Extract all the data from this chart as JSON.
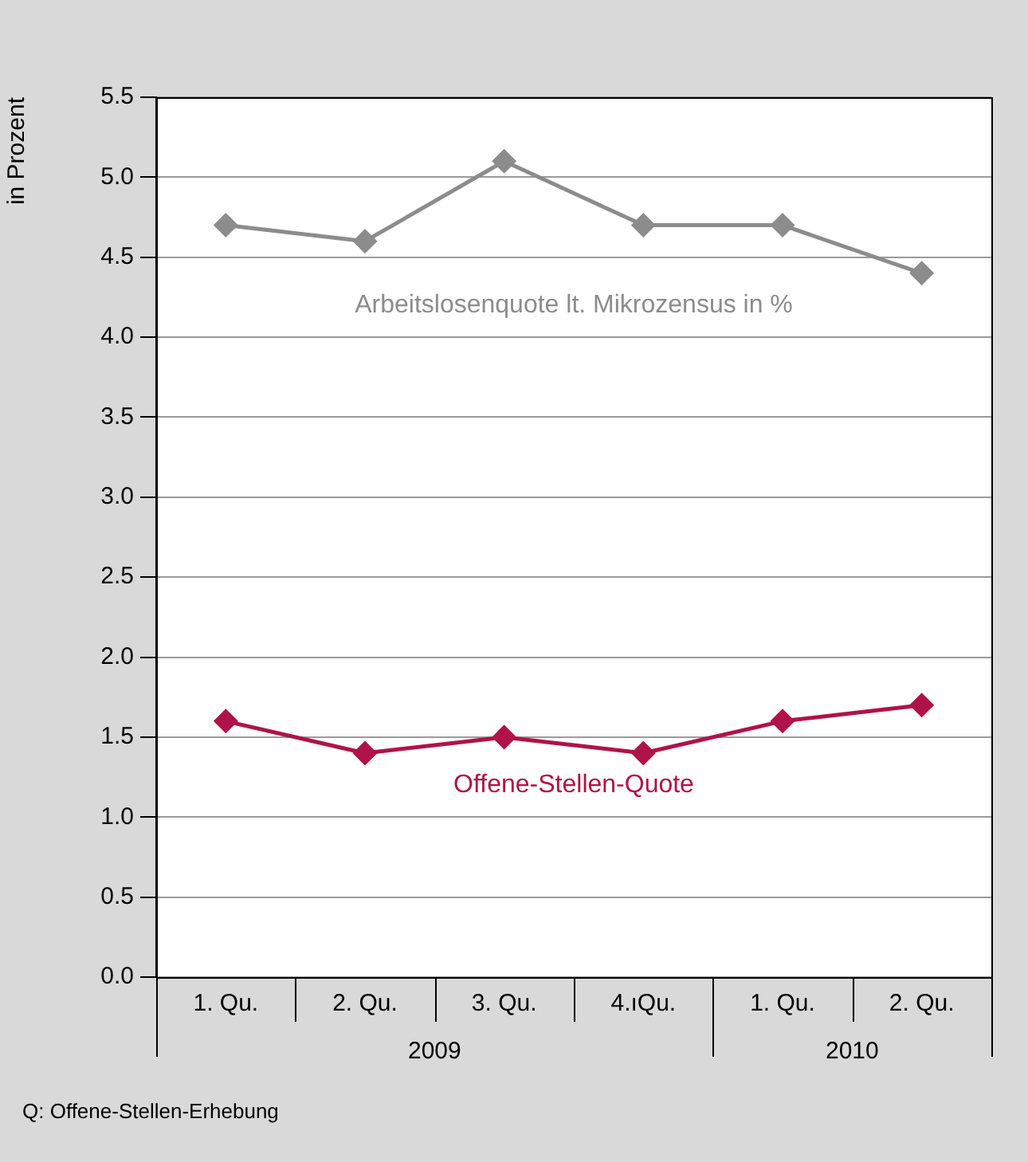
{
  "chart_data": {
    "type": "line",
    "ylabel": "in Prozent",
    "categories": [
      "1. Qu.",
      "2. Qu.",
      "3. Qu.",
      "4.ıQu.",
      "1. Qu.",
      "2. Qu."
    ],
    "series": [
      {
        "name": "Arbeitslosenquote lt. Mikrozensus in %",
        "color": "#8c8c8c",
        "values": [
          4.7,
          4.6,
          5.1,
          4.7,
          4.7,
          4.4
        ]
      },
      {
        "name": "Offene-Stellen-Quote",
        "color": "#b0124a",
        "values": [
          1.6,
          1.4,
          1.5,
          1.4,
          1.6,
          1.7
        ]
      }
    ],
    "ylim": [
      0,
      5.5
    ],
    "yticks": [
      {
        "value": 0,
        "label": "0.0"
      },
      {
        "value": 0.5,
        "label": "0.5"
      },
      {
        "value": 1,
        "label": "1.0"
      },
      {
        "value": 1.5,
        "label": "1.5"
      },
      {
        "value": 2,
        "label": "2.0"
      },
      {
        "value": 2.5,
        "label": "2.5"
      },
      {
        "value": 3,
        "label": "3.0"
      },
      {
        "value": 3.5,
        "label": "3.5"
      },
      {
        "value": 4,
        "label": "4.0"
      },
      {
        "value": 4.5,
        "label": "4.5"
      },
      {
        "value": 5,
        "label": "5.0"
      },
      {
        "value": 5.5,
        "label": "5.5"
      }
    ],
    "grid": "y",
    "legend": false,
    "marker": "diamond",
    "line_style": "solid",
    "annotations": [
      "2009",
      "2010",
      "Q: Offene-Stellen-Erhebung"
    ]
  }
}
